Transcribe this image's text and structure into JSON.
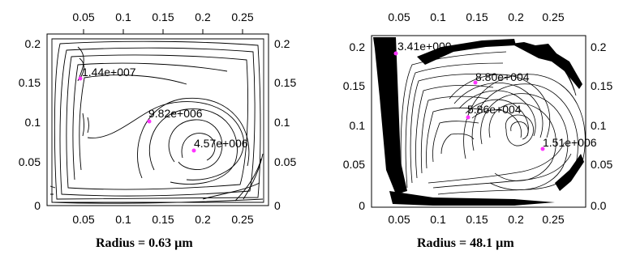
{
  "figure": {
    "panels": [
      {
        "caption": "Radius = 0.63 µm",
        "x_ticks": [
          "0.05",
          "0.1",
          "0.15",
          "0.2",
          "0.25"
        ],
        "y_ticks_left": [
          "0.2",
          "0.15",
          "0.1",
          "0.05",
          "0"
        ],
        "y_ticks_right": [
          "0.2",
          "0.15",
          "0.1",
          "0.05",
          "0"
        ],
        "labels": [
          "1.44e+007",
          "9.82e+006",
          "4.57e+006"
        ]
      },
      {
        "caption": "Radius = 48.1 µm",
        "x_ticks": [
          "0.05",
          "0.1",
          "0.15",
          "0.2",
          "0.25"
        ],
        "y_ticks_left": [
          "0.2",
          "0.15",
          "0.1",
          "0.05",
          "0"
        ],
        "y_ticks_right": [
          "0.2",
          "0.15",
          "0.1",
          "0.05",
          "0.0"
        ],
        "labels": [
          "3.41e+000",
          "8.80e+004",
          "5.86e+004",
          "1.51e+006"
        ]
      }
    ]
  },
  "colors": {
    "marker": "#ff33ff",
    "line": "#000000"
  }
}
